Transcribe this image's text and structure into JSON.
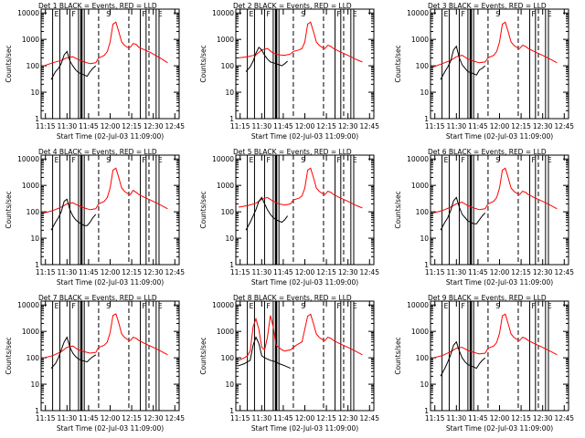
{
  "chart_data": {
    "type": "line",
    "title_template": "Det {n} BLACK = Events, RED = LLD",
    "xlabel": "Start Time (02-Jul-03 11:09:00)",
    "ylabel": "Counts/sec",
    "x_ticks": [
      "11:15",
      "11:30",
      "11:45",
      "12:00",
      "12:15",
      "12:30",
      "12:45"
    ],
    "x_tick_minutes": [
      15,
      30,
      45,
      60,
      75,
      90,
      105
    ],
    "xlim": [
      12,
      108
    ],
    "y_scale": "log",
    "ylim": [
      1,
      14000
    ],
    "y_ticks": [
      "1",
      "10",
      "100",
      "1000",
      "10000"
    ],
    "y_tick_values": [
      1,
      10,
      100,
      1000,
      10000
    ],
    "marker_labels": [
      "E",
      "F",
      "S",
      "F",
      "E"
    ],
    "colors": {
      "events": "#000000",
      "lld": "#ff0000",
      "axes": "#000000"
    },
    "panels": [
      {
        "det": "1",
        "title": "Det 1 BLACK = Events, RED = LLD",
        "events": {
          "x": [
            19,
            22,
            24,
            26,
            28,
            30,
            32,
            34,
            36,
            38,
            40,
            42,
            44,
            46,
            48,
            50
          ],
          "y": [
            30,
            60,
            80,
            120,
            260,
            350,
            150,
            100,
            70,
            55,
            50,
            45,
            40,
            60,
            80,
            100
          ]
        },
        "lld": {
          "x": [
            14,
            20,
            26,
            30,
            34,
            38,
            42,
            46,
            50,
            52,
            54,
            56,
            58,
            60,
            62,
            64,
            66,
            68,
            70,
            72,
            74,
            76,
            78,
            80,
            84,
            88,
            92,
            96,
            100
          ],
          "y": [
            100,
            130,
            160,
            200,
            220,
            170,
            140,
            120,
            130,
            200,
            220,
            250,
            350,
            800,
            3800,
            4500,
            2000,
            800,
            600,
            500,
            500,
            700,
            650,
            500,
            400,
            320,
            240,
            180,
            130
          ]
        }
      },
      {
        "det": "2",
        "title": "Det 2 BLACK = Events, RED = LLD",
        "events": {
          "x": [
            19,
            22,
            24,
            26,
            28,
            30,
            32,
            34,
            36,
            38,
            40,
            42,
            44,
            46,
            48
          ],
          "y": [
            60,
            90,
            150,
            300,
            500,
            400,
            250,
            180,
            140,
            130,
            120,
            110,
            100,
            120,
            150
          ]
        },
        "lld": {
          "x": [
            14,
            20,
            26,
            30,
            34,
            38,
            42,
            46,
            50,
            52,
            56,
            58,
            60,
            62,
            64,
            66,
            68,
            70,
            72,
            74,
            76,
            78,
            80,
            84,
            88,
            92,
            96,
            100
          ],
          "y": [
            200,
            220,
            260,
            400,
            450,
            300,
            260,
            250,
            280,
            350,
            400,
            450,
            800,
            3800,
            4500,
            2000,
            800,
            600,
            500,
            450,
            600,
            550,
            450,
            350,
            280,
            220,
            170,
            140
          ]
        }
      },
      {
        "det": "3",
        "title": "Det 3 BLACK = Events, RED = LLD",
        "events": {
          "x": [
            19,
            22,
            24,
            26,
            28,
            30,
            32,
            34,
            36,
            38,
            40,
            42,
            44,
            46,
            48,
            50
          ],
          "y": [
            30,
            60,
            90,
            150,
            400,
            550,
            200,
            110,
            80,
            60,
            55,
            50,
            45,
            70,
            80,
            100
          ]
        },
        "lld": {
          "x": [
            14,
            20,
            26,
            30,
            34,
            38,
            42,
            46,
            50,
            52,
            56,
            58,
            60,
            62,
            64,
            66,
            68,
            70,
            72,
            74,
            76,
            78,
            80,
            84,
            88,
            92,
            96,
            100
          ],
          "y": [
            90,
            120,
            160,
            220,
            250,
            180,
            150,
            130,
            140,
            200,
            250,
            350,
            800,
            3800,
            4500,
            2000,
            800,
            600,
            500,
            450,
            600,
            550,
            450,
            350,
            280,
            220,
            170,
            130
          ]
        }
      },
      {
        "det": "4",
        "title": "Det 4 BLACK = Events, RED = LLD",
        "events": {
          "x": [
            19,
            22,
            24,
            26,
            28,
            30,
            32,
            34,
            36,
            38,
            40,
            42,
            44,
            46,
            48,
            50
          ],
          "y": [
            20,
            40,
            60,
            100,
            250,
            300,
            120,
            70,
            50,
            40,
            35,
            30,
            30,
            40,
            60,
            80
          ]
        },
        "lld": {
          "x": [
            14,
            20,
            26,
            30,
            34,
            38,
            42,
            46,
            50,
            52,
            56,
            58,
            60,
            62,
            64,
            66,
            68,
            70,
            72,
            74,
            76,
            78,
            80,
            84,
            88,
            92,
            96,
            100
          ],
          "y": [
            90,
            110,
            150,
            200,
            220,
            170,
            140,
            120,
            130,
            200,
            250,
            350,
            800,
            3800,
            4500,
            2000,
            800,
            600,
            500,
            450,
            650,
            550,
            450,
            350,
            280,
            220,
            170,
            130
          ]
        }
      },
      {
        "det": "5",
        "title": "Det 5 BLACK = Events, RED = LLD",
        "events": {
          "x": [
            19,
            22,
            24,
            26,
            28,
            30,
            32,
            34,
            36,
            38,
            40,
            42,
            44,
            46,
            48
          ],
          "y": [
            20,
            40,
            70,
            120,
            250,
            350,
            200,
            120,
            80,
            60,
            50,
            45,
            40,
            50,
            70
          ]
        },
        "lld": {
          "x": [
            14,
            20,
            26,
            30,
            34,
            38,
            42,
            46,
            50,
            52,
            56,
            58,
            60,
            62,
            64,
            66,
            68,
            70,
            72,
            74,
            76,
            78,
            80,
            84,
            88,
            92,
            96,
            100
          ],
          "y": [
            150,
            170,
            210,
            300,
            350,
            250,
            200,
            180,
            200,
            280,
            330,
            400,
            800,
            3800,
            4500,
            2000,
            800,
            600,
            500,
            450,
            600,
            550,
            450,
            350,
            280,
            220,
            170,
            140
          ]
        }
      },
      {
        "det": "6",
        "title": "Det 6 BLACK = Events, RED = LLD",
        "events": {
          "x": [
            19,
            22,
            24,
            26,
            28,
            30,
            32,
            34,
            36,
            38,
            40,
            42,
            44,
            46,
            48,
            50
          ],
          "y": [
            20,
            40,
            60,
            110,
            260,
            350,
            150,
            80,
            60,
            45,
            40,
            35,
            35,
            50,
            70,
            90
          ]
        },
        "lld": {
          "x": [
            14,
            20,
            26,
            30,
            34,
            38,
            42,
            46,
            50,
            52,
            56,
            58,
            60,
            62,
            64,
            66,
            68,
            70,
            72,
            74,
            76,
            78,
            80,
            84,
            88,
            92,
            96,
            100
          ],
          "y": [
            90,
            110,
            150,
            200,
            230,
            170,
            140,
            120,
            130,
            200,
            250,
            350,
            800,
            3800,
            4500,
            2000,
            800,
            600,
            500,
            450,
            600,
            550,
            450,
            350,
            280,
            220,
            170,
            130
          ]
        }
      },
      {
        "det": "7",
        "title": "Det 7 BLACK = Events, RED = LLD",
        "events": {
          "x": [
            19,
            22,
            24,
            26,
            28,
            30,
            32,
            34,
            36,
            38,
            40,
            42,
            44,
            46,
            48,
            50
          ],
          "y": [
            40,
            60,
            100,
            200,
            400,
            600,
            250,
            150,
            110,
            90,
            80,
            75,
            70,
            90,
            110,
            130
          ]
        },
        "lld": {
          "x": [
            14,
            20,
            26,
            30,
            34,
            38,
            42,
            46,
            50,
            52,
            56,
            58,
            60,
            62,
            64,
            66,
            68,
            70,
            72,
            74,
            76,
            78,
            80,
            84,
            88,
            92,
            96,
            100
          ],
          "y": [
            100,
            120,
            170,
            250,
            280,
            200,
            170,
            150,
            160,
            250,
            300,
            400,
            900,
            4000,
            4600,
            2100,
            800,
            600,
            500,
            450,
            600,
            550,
            450,
            350,
            280,
            220,
            170,
            130
          ]
        }
      },
      {
        "det": "8",
        "title": "Det 8 BLACK = Events, RED = LLD",
        "events": {
          "x": [
            14,
            18,
            20,
            22,
            24,
            26,
            28,
            30,
            32,
            34,
            36,
            38,
            40,
            42,
            44,
            46,
            48,
            50
          ],
          "y": [
            50,
            60,
            70,
            80,
            300,
            600,
            350,
            120,
            100,
            90,
            80,
            75,
            70,
            60,
            55,
            50,
            45,
            40
          ]
        },
        "lld": {
          "x": [
            14,
            16,
            18,
            20,
            22,
            24,
            26,
            28,
            30,
            32,
            34,
            36,
            38,
            40,
            42,
            44,
            46,
            48,
            50,
            54,
            58,
            62,
            64,
            66,
            68,
            70,
            72,
            74,
            76,
            78,
            80,
            84,
            88,
            92,
            96,
            100
          ],
          "y": [
            80,
            90,
            100,
            120,
            180,
            1500,
            3000,
            1200,
            250,
            200,
            600,
            4000,
            1500,
            300,
            250,
            200,
            180,
            190,
            200,
            300,
            400,
            3800,
            4500,
            2000,
            800,
            600,
            500,
            450,
            600,
            550,
            450,
            350,
            280,
            220,
            170,
            130
          ]
        }
      },
      {
        "det": "9",
        "title": "Det 9 BLACK = Events, RED = LLD",
        "events": {
          "x": [
            19,
            22,
            24,
            26,
            28,
            30,
            32,
            34,
            36,
            38,
            40,
            42,
            44,
            46,
            48,
            50
          ],
          "y": [
            20,
            40,
            70,
            130,
            300,
            400,
            180,
            100,
            70,
            55,
            50,
            45,
            40,
            60,
            80,
            100
          ]
        },
        "lld": {
          "x": [
            14,
            20,
            26,
            30,
            34,
            38,
            42,
            46,
            50,
            52,
            56,
            58,
            60,
            62,
            64,
            66,
            68,
            70,
            72,
            74,
            76,
            78,
            80,
            84,
            88,
            92,
            96,
            100
          ],
          "y": [
            100,
            120,
            170,
            230,
            250,
            190,
            160,
            140,
            150,
            230,
            280,
            380,
            850,
            3900,
            4500,
            2000,
            800,
            600,
            500,
            450,
            600,
            550,
            450,
            350,
            280,
            220,
            170,
            130
          ]
        }
      }
    ]
  }
}
